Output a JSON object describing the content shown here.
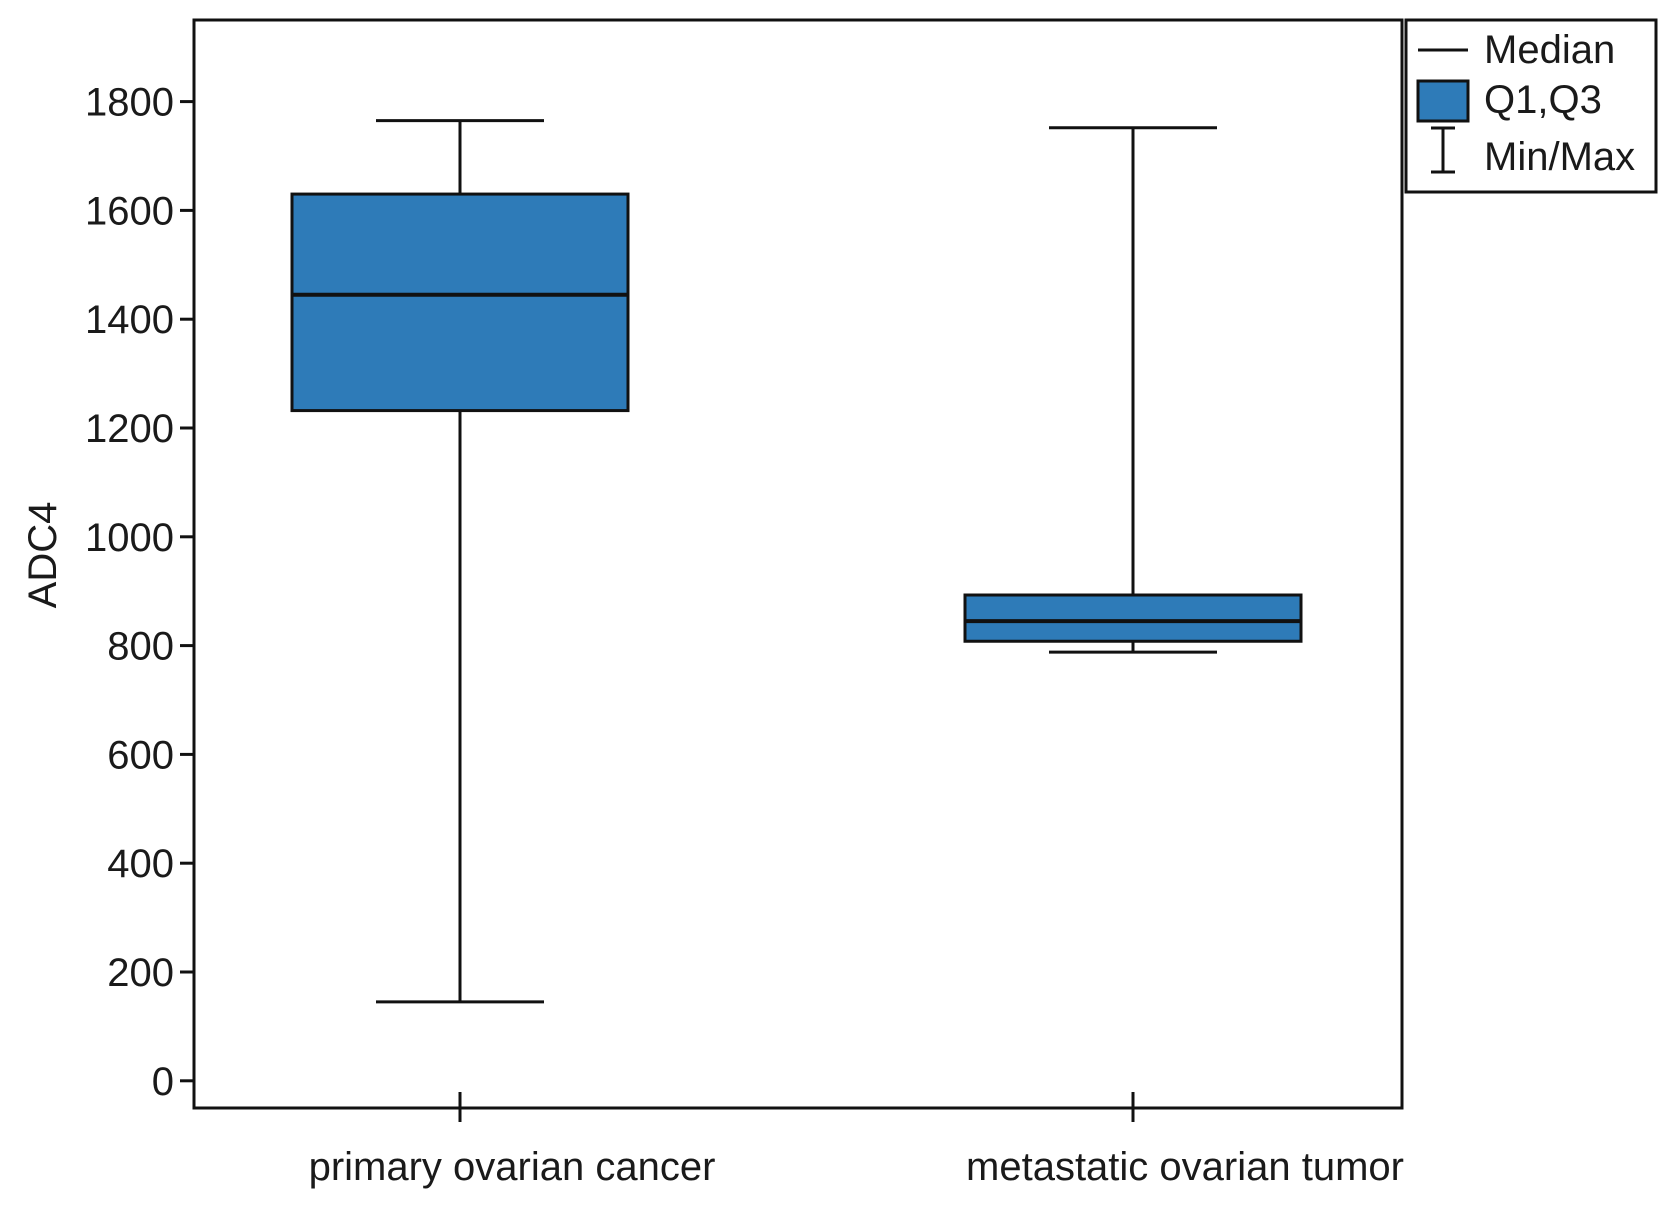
{
  "chart_data": {
    "type": "box",
    "title": "",
    "xlabel": "",
    "ylabel": "ADC4",
    "ylim": [
      -50,
      1950
    ],
    "yticks": [
      0,
      200,
      400,
      600,
      800,
      1000,
      1200,
      1400,
      1600,
      1800
    ],
    "categories": [
      "primary ovarian cancer",
      "metastatic ovarian tumor"
    ],
    "boxes": [
      {
        "category": "primary ovarian cancer",
        "min": 145,
        "q1": 1232,
        "median": 1445,
        "q3": 1630,
        "max": 1765
      },
      {
        "category": "metastatic ovarian tumor",
        "min": 788,
        "q1": 808,
        "median": 845,
        "q3": 893,
        "max": 1752
      }
    ],
    "legend": {
      "position": "top-right",
      "items": [
        {
          "kind": "line",
          "label": "Median"
        },
        {
          "kind": "box",
          "label": "Q1,Q3"
        },
        {
          "kind": "whisker",
          "label": "Min/Max"
        }
      ]
    },
    "colors": {
      "box_fill": "#2e7bb8",
      "stroke": "#111111"
    }
  }
}
